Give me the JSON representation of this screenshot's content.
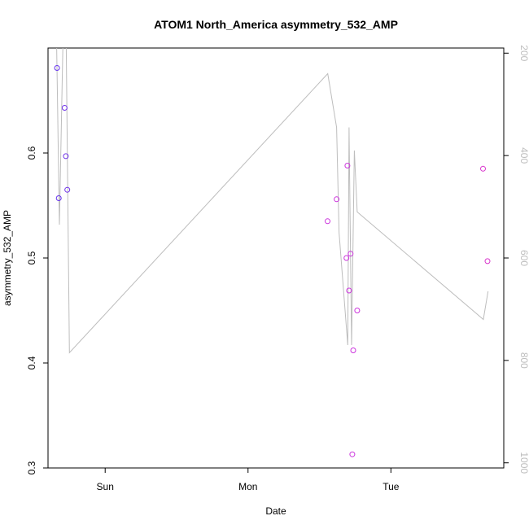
{
  "chart_data": {
    "type": "scatter",
    "title": "ATOM1 North_America asymmetry_532_AMP",
    "xlabel": "Date",
    "ylabel": "asymmetry_532_AMP",
    "x_unit": "days since Sat 00:00",
    "xlim": [
      1.6,
      4.79
    ],
    "ylim": [
      0.3,
      0.7
    ],
    "y_ticks": [
      0.3,
      0.4,
      0.5,
      0.6
    ],
    "x_ticks": [
      {
        "value": 2,
        "label": "Sun"
      },
      {
        "value": 3,
        "label": "Mon"
      },
      {
        "value": 4,
        "label": "Tue"
      }
    ],
    "y2lim": [
      1010,
      190
    ],
    "y2_ticks": [
      200,
      400,
      600,
      800,
      1000
    ],
    "grid": false,
    "points": [
      {
        "x": 1.663,
        "y": 0.681,
        "color": "#6633ee"
      },
      {
        "x": 1.675,
        "y": 0.557,
        "color": "#6633ee"
      },
      {
        "x": 1.716,
        "y": 0.643,
        "color": "#7033ea"
      },
      {
        "x": 1.725,
        "y": 0.597,
        "color": "#7033ea"
      },
      {
        "x": 1.735,
        "y": 0.565,
        "color": "#7033ea"
      },
      {
        "x": 3.557,
        "y": 0.535,
        "color": "#cc33dd"
      },
      {
        "x": 3.62,
        "y": 0.556,
        "color": "#cc33dd"
      },
      {
        "x": 3.689,
        "y": 0.5,
        "color": "#cc33dd"
      },
      {
        "x": 3.696,
        "y": 0.588,
        "color": "#cc33dd"
      },
      {
        "x": 3.707,
        "y": 0.469,
        "color": "#cc33dd"
      },
      {
        "x": 3.718,
        "y": 0.504,
        "color": "#cc33dd"
      },
      {
        "x": 3.736,
        "y": 0.412,
        "color": "#cc33dd"
      },
      {
        "x": 3.73,
        "y": 0.313,
        "color": "#cc33dd"
      },
      {
        "x": 3.764,
        "y": 0.45,
        "color": "#cc33dd"
      },
      {
        "x": 4.645,
        "y": 0.585,
        "color": "#d933cc"
      },
      {
        "x": 4.676,
        "y": 0.497,
        "color": "#d933cc"
      }
    ],
    "line_color": "#bdbdbd",
    "line_y2": [
      {
        "x": 1.66,
        "y": 175
      },
      {
        "x": 1.68,
        "y": 535
      },
      {
        "x": 1.705,
        "y": 175
      },
      {
        "x": 1.727,
        "y": 175
      },
      {
        "x": 1.75,
        "y": 785
      },
      {
        "x": 3.558,
        "y": 240
      },
      {
        "x": 3.62,
        "y": 345
      },
      {
        "x": 3.637,
        "y": 550
      },
      {
        "x": 3.698,
        "y": 770
      },
      {
        "x": 3.707,
        "y": 345
      },
      {
        "x": 3.725,
        "y": 770
      },
      {
        "x": 3.744,
        "y": 390
      },
      {
        "x": 3.764,
        "y": 510
      },
      {
        "x": 4.647,
        "y": 720
      },
      {
        "x": 4.68,
        "y": 665
      }
    ]
  }
}
